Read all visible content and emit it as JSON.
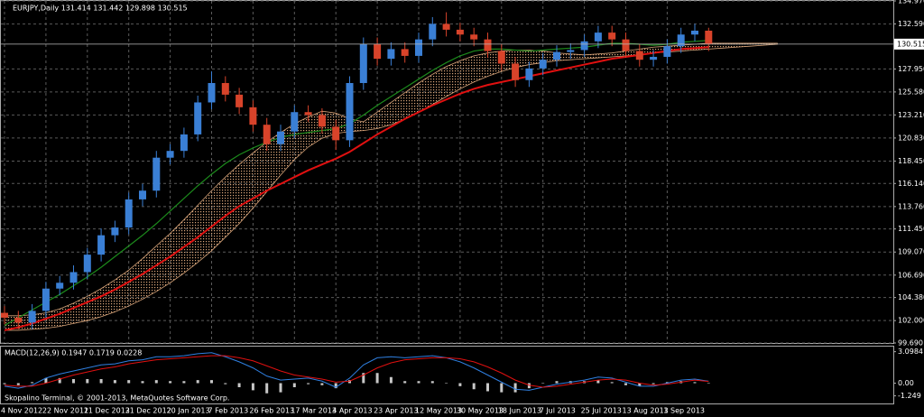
{
  "chart_data": [
    {
      "type": "candlestick",
      "title": "EURJPY,Daily  131.414 131.442 129.898 130.515",
      "categories": [
        "4 Nov 2012",
        null,
        null,
        "22 Nov 2012",
        null,
        null,
        "11 Dec 2012",
        null,
        null,
        "31 Dec 2012",
        null,
        null,
        "20 Jan 2013",
        null,
        null,
        "7 Feb 2013",
        null,
        null,
        "26 Feb 2013",
        null,
        null,
        "17 Mar 2013",
        null,
        null,
        "4 Apr 2013",
        null,
        null,
        "23 Apr 2013",
        null,
        null,
        "12 May 2013",
        null,
        null,
        "30 May 2013",
        null,
        null,
        "18 Jun 2013",
        null,
        null,
        "7 Jul 2013",
        null,
        null,
        "25 Jul 2013",
        null,
        null,
        "13 Aug 2013",
        null,
        null,
        "1 Sep 2013",
        null,
        null,
        null,
        null,
        null,
        null,
        null,
        null
      ],
      "open": [
        102.8,
        102.3,
        101.8,
        103.0,
        105.3,
        105.9,
        107.0,
        108.8,
        110.8,
        111.6,
        114.5,
        115.4,
        118.8,
        119.5,
        121.2,
        124.5,
        126.5,
        125.3,
        124.0,
        122.2,
        120.2,
        121.5,
        123.5,
        123.2,
        122.0,
        120.6,
        126.5,
        130.5,
        129.0,
        130.0,
        129.3,
        131.0,
        132.6,
        132.0,
        131.5,
        131.0,
        129.8,
        128.5,
        126.8,
        128.0,
        128.9,
        129.7,
        129.9,
        130.8,
        131.7,
        131.0,
        129.8,
        128.9,
        129.2,
        130.3,
        131.5,
        131.9,
        null,
        null,
        null,
        null,
        null
      ],
      "high": [
        103.5,
        103.0,
        103.7,
        106.0,
        106.6,
        107.7,
        109.5,
        111.5,
        112.3,
        115.2,
        116.1,
        119.5,
        120.2,
        121.9,
        125.2,
        127.7,
        127.2,
        126.0,
        124.7,
        122.9,
        122.2,
        124.2,
        124.2,
        123.9,
        122.7,
        127.2,
        131.2,
        131.2,
        130.7,
        130.7,
        131.7,
        133.3,
        133.8,
        132.7,
        132.2,
        131.7,
        130.5,
        129.2,
        128.7,
        129.6,
        130.4,
        130.6,
        131.5,
        132.4,
        132.4,
        131.7,
        130.5,
        129.9,
        131.0,
        132.2,
        132.6,
        132.2,
        null,
        null,
        null,
        null,
        null
      ],
      "low": [
        101.6,
        101.1,
        101.1,
        102.3,
        104.6,
        105.2,
        106.3,
        108.1,
        110.1,
        110.9,
        113.8,
        114.7,
        118.1,
        118.8,
        120.5,
        123.8,
        124.6,
        123.3,
        121.5,
        119.5,
        119.5,
        120.8,
        122.5,
        121.3,
        119.6,
        119.9,
        125.8,
        128.3,
        128.3,
        128.6,
        128.6,
        130.3,
        131.3,
        130.8,
        130.3,
        129.1,
        127.8,
        126.1,
        126.1,
        127.3,
        128.2,
        129.0,
        129.2,
        130.1,
        130.3,
        129.1,
        128.2,
        128.2,
        128.5,
        129.6,
        130.8,
        129.8,
        null,
        null,
        null,
        null,
        null
      ],
      "close": [
        102.3,
        101.8,
        103.0,
        105.3,
        105.9,
        107.0,
        108.8,
        110.8,
        111.6,
        114.5,
        115.4,
        118.8,
        119.5,
        121.2,
        124.5,
        126.5,
        125.3,
        124.0,
        122.2,
        120.2,
        121.5,
        123.5,
        123.2,
        122.0,
        120.6,
        126.5,
        130.5,
        129.0,
        130.0,
        129.3,
        131.0,
        132.6,
        132.0,
        131.5,
        131.0,
        129.8,
        128.5,
        126.8,
        128.0,
        128.9,
        129.7,
        129.9,
        130.8,
        131.7,
        131.0,
        129.8,
        128.9,
        129.2,
        130.3,
        131.5,
        131.9,
        130.515,
        null,
        null,
        null,
        null,
        null
      ],
      "up_color": "#3a7fd5",
      "down_color": "#d8432a",
      "series": [
        {
          "color": "#e01010",
          "values": [
            101.0,
            101.3,
            101.7,
            102.2,
            102.7,
            103.3,
            103.9,
            104.5,
            105.2,
            106.0,
            106.8,
            107.7,
            108.6,
            109.6,
            110.6,
            111.7,
            112.8,
            113.8,
            114.6,
            115.4,
            116.1,
            116.8,
            117.5,
            118.1,
            118.7,
            119.4,
            120.3,
            121.2,
            122.0,
            122.8,
            123.5,
            124.2,
            124.8,
            125.4,
            125.9,
            126.3,
            126.6,
            126.9,
            127.2,
            127.5,
            127.8,
            128.1,
            128.4,
            128.7,
            129.0,
            129.2,
            129.4,
            129.6,
            129.8,
            130.0,
            130.1,
            130.2,
            null,
            null,
            null,
            null,
            null
          ]
        },
        {
          "color": "#1c8a1c",
          "values": [
            101.5,
            102.3,
            103.1,
            103.9,
            104.7,
            105.6,
            106.5,
            107.5,
            108.6,
            109.7,
            110.8,
            112.0,
            113.3,
            114.6,
            115.9,
            117.1,
            118.2,
            119.1,
            119.8,
            120.4,
            120.9,
            121.2,
            121.4,
            121.6,
            121.8,
            122.3,
            123.2,
            124.2,
            125.1,
            126.0,
            126.9,
            127.8,
            128.6,
            129.3,
            129.8,
            130.0,
            130.0,
            129.9,
            129.8,
            129.9,
            130.0,
            130.1,
            130.2,
            130.4,
            130.6,
            130.6,
            130.5,
            130.4,
            130.5,
            130.7,
            130.8,
            130.9,
            null,
            null,
            null,
            null,
            null
          ]
        }
      ],
      "cloud_color": "#d9a57a",
      "span_a": [
        102.5,
        102.5,
        102.6,
        102.8,
        103.2,
        103.8,
        104.5,
        105.3,
        106.2,
        107.2,
        108.4,
        109.7,
        111.0,
        112.4,
        113.9,
        115.4,
        116.8,
        118.1,
        119.3,
        120.4,
        121.4,
        122.3,
        123.0,
        123.6,
        123.4,
        122.8,
        122.5,
        123.5,
        124.5,
        125.5,
        126.5,
        127.4,
        128.2,
        128.8,
        129.3,
        129.6,
        129.8,
        129.9,
        129.9,
        129.8,
        129.6,
        129.5,
        129.4,
        129.5,
        129.6,
        129.8,
        130.0,
        130.2,
        130.3,
        130.4,
        130.5,
        130.6,
        130.6,
        130.6,
        130.6,
        130.6,
        130.6
      ],
      "span_b": [
        101.0,
        101.0,
        101.1,
        101.2,
        101.4,
        101.7,
        102.0,
        102.4,
        102.9,
        103.5,
        104.2,
        105.0,
        105.9,
        106.9,
        108.0,
        109.2,
        110.6,
        112.0,
        113.6,
        115.3,
        117.0,
        118.6,
        119.9,
        120.8,
        121.3,
        121.5,
        121.6,
        121.8,
        122.2,
        122.8,
        123.5,
        124.3,
        125.1,
        125.9,
        126.6,
        127.2,
        127.7,
        128.1,
        128.4,
        128.6,
        128.8,
        128.9,
        129.0,
        129.1,
        129.2,
        129.3,
        129.4,
        129.6,
        129.7,
        129.8,
        129.9,
        130.0,
        130.1,
        130.2,
        130.3,
        130.4,
        130.5
      ],
      "last_price": 130.515,
      "ylim": [
        99.69,
        134.97
      ],
      "yticks": [
        {
          "value": 134.97,
          "label": "134.970"
        },
        {
          "value": 132.59,
          "label": "132.590"
        },
        {
          "value": 127.95,
          "label": "127.950"
        },
        {
          "value": 125.58,
          "label": "125.580"
        },
        {
          "value": 123.21,
          "label": "123.210"
        },
        {
          "value": 120.83,
          "label": "120.830"
        },
        {
          "value": 118.45,
          "label": "118.450"
        },
        {
          "value": 116.14,
          "label": "116.140"
        },
        {
          "value": 113.76,
          "label": "113.760"
        },
        {
          "value": 111.45,
          "label": "111.450"
        },
        {
          "value": 109.07,
          "label": "109.070"
        },
        {
          "value": 106.69,
          "label": "106.690"
        },
        {
          "value": 104.38,
          "label": "104.380"
        },
        {
          "value": 102.0,
          "label": "102.000"
        },
        {
          "value": 99.69,
          "label": "99.690"
        }
      ],
      "grid": true
    },
    {
      "type": "macd",
      "title": "MACD(12,26,9) 0.1947 0.1719 0.0228",
      "histogram": {
        "color": "#c8c8c8",
        "values": [
          -0.1,
          -0.2,
          0.1,
          0.5,
          0.5,
          0.4,
          0.4,
          0.4,
          0.3,
          0.3,
          0.2,
          0.3,
          0.2,
          0.2,
          0.3,
          0.3,
          -0.1,
          -0.4,
          -0.7,
          -1.0,
          -0.9,
          -0.4,
          -0.1,
          -0.2,
          -0.5,
          0.3,
          1.0,
          1.0,
          0.6,
          0.2,
          0.2,
          0.2,
          0.0,
          -0.3,
          -0.6,
          -0.8,
          -0.9,
          -0.9,
          -0.5,
          0.0,
          0.2,
          0.2,
          0.2,
          0.3,
          0.1,
          -0.2,
          -0.3,
          -0.1,
          0.1,
          0.2,
          0.1,
          0.0228,
          null,
          null,
          null,
          null,
          null
        ]
      },
      "series": [
        {
          "color": "#2f7fe0",
          "values": [
            -0.3,
            -0.5,
            -0.2,
            0.5,
            0.9,
            1.2,
            1.5,
            1.8,
            1.9,
            2.2,
            2.3,
            2.6,
            2.6,
            2.7,
            2.9,
            3.0,
            2.6,
            2.1,
            1.5,
            0.7,
            0.3,
            0.4,
            0.5,
            0.2,
            -0.4,
            0.5,
            1.8,
            2.5,
            2.6,
            2.5,
            2.6,
            2.7,
            2.5,
            2.1,
            1.5,
            0.8,
            0.1,
            -0.6,
            -0.7,
            -0.4,
            -0.1,
            0.1,
            0.3,
            0.6,
            0.5,
            0.1,
            -0.3,
            -0.3,
            0.0,
            0.3,
            0.4,
            0.1947,
            null,
            null,
            null,
            null,
            null
          ]
        },
        {
          "color": "#e01010",
          "values": [
            -0.2,
            -0.3,
            -0.3,
            0.0,
            0.4,
            0.8,
            1.1,
            1.4,
            1.6,
            1.9,
            2.1,
            2.3,
            2.4,
            2.5,
            2.6,
            2.7,
            2.7,
            2.5,
            2.2,
            1.7,
            1.2,
            0.8,
            0.6,
            0.4,
            0.1,
            0.2,
            0.8,
            1.5,
            2.0,
            2.3,
            2.4,
            2.5,
            2.5,
            2.4,
            2.1,
            1.6,
            1.0,
            0.3,
            -0.2,
            -0.4,
            -0.3,
            -0.1,
            0.1,
            0.3,
            0.4,
            0.3,
            0.0,
            -0.2,
            -0.1,
            0.1,
            0.3,
            0.1719,
            null,
            null,
            null,
            null,
            null
          ]
        }
      ],
      "ylim": [
        -2.0,
        3.6
      ],
      "yticks": [
        3.0984,
        {
          "value": 0,
          "label": "0.00"
        },
        -1.249
      ],
      "footer": "Skopalino Terminal, © 2001-2013, MetaQuotes Software Corp."
    }
  ]
}
